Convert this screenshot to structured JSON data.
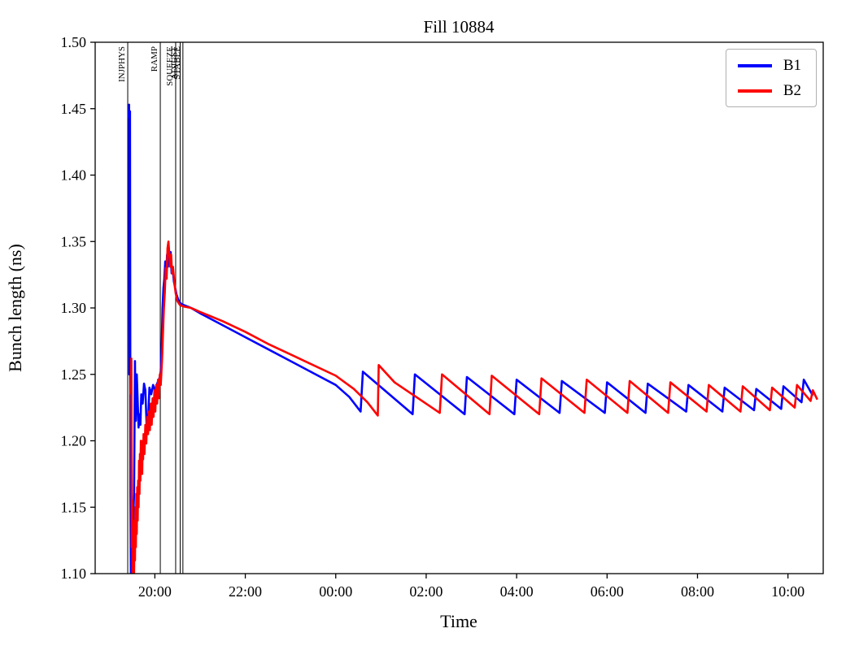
{
  "chart_data": {
    "type": "line",
    "title": "Fill 10884",
    "xlabel": "Time",
    "ylabel": "Bunch length (ns)",
    "x_unit": "hours_after_20:00",
    "xlim": [
      -1.32,
      14.78
    ],
    "ylim": [
      1.1,
      1.5
    ],
    "grid": false,
    "x_ticks": [
      {
        "t": 0,
        "label": "20:00"
      },
      {
        "t": 2,
        "label": "22:00"
      },
      {
        "t": 4,
        "label": "00:00"
      },
      {
        "t": 6,
        "label": "02:00"
      },
      {
        "t": 8,
        "label": "04:00"
      },
      {
        "t": 10,
        "label": "06:00"
      },
      {
        "t": 12,
        "label": "08:00"
      },
      {
        "t": 14,
        "label": "10:00"
      }
    ],
    "y_ticks": [
      1.1,
      1.15,
      1.2,
      1.25,
      1.3,
      1.35,
      1.4,
      1.45,
      1.5
    ],
    "beam_modes": [
      {
        "label": "INJPHYS",
        "t": -0.6
      },
      {
        "label": "RAMP",
        "t": 0.12
      },
      {
        "label": "SQUEEZE",
        "t": 0.46
      },
      {
        "label": "ADJUST",
        "t": 0.56
      },
      {
        "label": "STABLE",
        "t": 0.62
      }
    ],
    "legend": {
      "position": "upper right",
      "entries": [
        {
          "label": "B1",
          "color": "#0000ff"
        },
        {
          "label": "B2",
          "color": "#ff0000"
        }
      ]
    },
    "series": [
      {
        "name": "B1",
        "color": "#0000ff",
        "points": [
          [
            -0.58,
            1.443
          ],
          [
            -0.57,
            1.453
          ],
          [
            -0.565,
            1.25
          ],
          [
            -0.56,
            1.445
          ],
          [
            -0.555,
            1.33
          ],
          [
            -0.55,
            1.448
          ],
          [
            -0.54,
            1.16
          ],
          [
            -0.53,
            1.1
          ],
          [
            -0.52,
            1.145
          ],
          [
            -0.51,
            1.14
          ],
          [
            -0.5,
            1.11
          ],
          [
            -0.48,
            1.14
          ],
          [
            -0.46,
            1.16
          ],
          [
            -0.44,
            1.26
          ],
          [
            -0.43,
            1.22
          ],
          [
            -0.42,
            1.215
          ],
          [
            -0.4,
            1.25
          ],
          [
            -0.38,
            1.23
          ],
          [
            -0.36,
            1.21
          ],
          [
            -0.34,
            1.22
          ],
          [
            -0.32,
            1.212
          ],
          [
            -0.3,
            1.235
          ],
          [
            -0.27,
            1.228
          ],
          [
            -0.24,
            1.243
          ],
          [
            -0.21,
            1.238
          ],
          [
            -0.18,
            1.21
          ],
          [
            -0.15,
            1.214
          ],
          [
            -0.12,
            1.24
          ],
          [
            -0.08,
            1.235
          ],
          [
            -0.04,
            1.242
          ],
          [
            0.0,
            1.238
          ],
          [
            0.05,
            1.243
          ],
          [
            0.1,
            1.247
          ],
          [
            0.13,
            1.252
          ],
          [
            0.15,
            1.27
          ],
          [
            0.17,
            1.3
          ],
          [
            0.19,
            1.315
          ],
          [
            0.21,
            1.322
          ],
          [
            0.23,
            1.335
          ],
          [
            0.25,
            1.325
          ],
          [
            0.27,
            1.34
          ],
          [
            0.29,
            1.331
          ],
          [
            0.31,
            1.345
          ],
          [
            0.33,
            1.336
          ],
          [
            0.35,
            1.342
          ],
          [
            0.37,
            1.326
          ],
          [
            0.39,
            1.331
          ],
          [
            0.42,
            1.32
          ],
          [
            0.45,
            1.315
          ],
          [
            0.48,
            1.31
          ],
          [
            0.52,
            1.306
          ],
          [
            0.58,
            1.303
          ],
          [
            0.65,
            1.302
          ],
          [
            0.8,
            1.3
          ],
          [
            1.0,
            1.296
          ],
          [
            1.5,
            1.287
          ],
          [
            2.0,
            1.278
          ],
          [
            2.5,
            1.269
          ],
          [
            3.0,
            1.26
          ],
          [
            3.5,
            1.251
          ],
          [
            4.0,
            1.242
          ],
          [
            4.3,
            1.233
          ],
          [
            4.55,
            1.222
          ],
          [
            4.6,
            1.252
          ],
          [
            5.7,
            1.22
          ],
          [
            5.75,
            1.25
          ],
          [
            6.85,
            1.22
          ],
          [
            6.9,
            1.248
          ],
          [
            7.95,
            1.22
          ],
          [
            8.0,
            1.246
          ],
          [
            8.95,
            1.221
          ],
          [
            9.0,
            1.245
          ],
          [
            9.95,
            1.221
          ],
          [
            10.0,
            1.244
          ],
          [
            10.85,
            1.221
          ],
          [
            10.9,
            1.243
          ],
          [
            11.75,
            1.222
          ],
          [
            11.8,
            1.242
          ],
          [
            12.55,
            1.222
          ],
          [
            12.6,
            1.24
          ],
          [
            13.25,
            1.223
          ],
          [
            13.3,
            1.239
          ],
          [
            13.85,
            1.224
          ],
          [
            13.9,
            1.241
          ],
          [
            14.3,
            1.229
          ],
          [
            14.35,
            1.246
          ],
          [
            14.55,
            1.234
          ]
        ]
      },
      {
        "name": "B2",
        "color": "#ff0000",
        "points": [
          [
            -0.53,
            1.235
          ],
          [
            -0.52,
            1.262
          ],
          [
            -0.515,
            1.18
          ],
          [
            -0.51,
            1.12
          ],
          [
            -0.5,
            1.155
          ],
          [
            -0.495,
            1.1
          ],
          [
            -0.49,
            1.13
          ],
          [
            -0.48,
            1.095
          ],
          [
            -0.47,
            1.125
          ],
          [
            -0.46,
            1.1
          ],
          [
            -0.45,
            1.14
          ],
          [
            -0.44,
            1.11
          ],
          [
            -0.43,
            1.15
          ],
          [
            -0.42,
            1.12
          ],
          [
            -0.41,
            1.16
          ],
          [
            -0.4,
            1.13
          ],
          [
            -0.39,
            1.165
          ],
          [
            -0.38,
            1.14
          ],
          [
            -0.37,
            1.17
          ],
          [
            -0.36,
            1.15
          ],
          [
            -0.35,
            1.185
          ],
          [
            -0.34,
            1.16
          ],
          [
            -0.33,
            1.19
          ],
          [
            -0.32,
            1.17
          ],
          [
            -0.31,
            1.2
          ],
          [
            -0.3,
            1.18
          ],
          [
            -0.29,
            1.196
          ],
          [
            -0.28,
            1.175
          ],
          [
            -0.27,
            1.2
          ],
          [
            -0.26,
            1.186
          ],
          [
            -0.25,
            1.205
          ],
          [
            -0.23,
            1.19
          ],
          [
            -0.21,
            1.212
          ],
          [
            -0.19,
            1.198
          ],
          [
            -0.17,
            1.218
          ],
          [
            -0.15,
            1.205
          ],
          [
            -0.13,
            1.222
          ],
          [
            -0.11,
            1.208
          ],
          [
            -0.09,
            1.228
          ],
          [
            -0.07,
            1.212
          ],
          [
            -0.05,
            1.232
          ],
          [
            -0.03,
            1.218
          ],
          [
            -0.01,
            1.238
          ],
          [
            0.01,
            1.222
          ],
          [
            0.03,
            1.242
          ],
          [
            0.05,
            1.228
          ],
          [
            0.07,
            1.246
          ],
          [
            0.09,
            1.232
          ],
          [
            0.11,
            1.25
          ],
          [
            0.13,
            1.242
          ],
          [
            0.16,
            1.262
          ],
          [
            0.18,
            1.282
          ],
          [
            0.2,
            1.3
          ],
          [
            0.22,
            1.312
          ],
          [
            0.24,
            1.33
          ],
          [
            0.26,
            1.322
          ],
          [
            0.28,
            1.345
          ],
          [
            0.3,
            1.35
          ],
          [
            0.32,
            1.34
          ],
          [
            0.34,
            1.331
          ],
          [
            0.36,
            1.34
          ],
          [
            0.38,
            1.326
          ],
          [
            0.4,
            1.331
          ],
          [
            0.43,
            1.32
          ],
          [
            0.46,
            1.311
          ],
          [
            0.5,
            1.305
          ],
          [
            0.56,
            1.302
          ],
          [
            0.65,
            1.301
          ],
          [
            0.8,
            1.3
          ],
          [
            1.0,
            1.297
          ],
          [
            1.5,
            1.29
          ],
          [
            2.0,
            1.282
          ],
          [
            2.5,
            1.273
          ],
          [
            3.0,
            1.265
          ],
          [
            3.5,
            1.257
          ],
          [
            4.0,
            1.249
          ],
          [
            4.4,
            1.239
          ],
          [
            4.7,
            1.229
          ],
          [
            4.93,
            1.219
          ],
          [
            4.95,
            1.257
          ],
          [
            5.3,
            1.244
          ],
          [
            6.3,
            1.221
          ],
          [
            6.35,
            1.25
          ],
          [
            7.4,
            1.22
          ],
          [
            7.45,
            1.249
          ],
          [
            8.5,
            1.22
          ],
          [
            8.55,
            1.247
          ],
          [
            9.5,
            1.221
          ],
          [
            9.55,
            1.246
          ],
          [
            10.45,
            1.221
          ],
          [
            10.5,
            1.245
          ],
          [
            11.35,
            1.221
          ],
          [
            11.4,
            1.244
          ],
          [
            12.2,
            1.222
          ],
          [
            12.25,
            1.242
          ],
          [
            12.95,
            1.222
          ],
          [
            13.0,
            1.241
          ],
          [
            13.6,
            1.223
          ],
          [
            13.65,
            1.24
          ],
          [
            14.15,
            1.225
          ],
          [
            14.2,
            1.242
          ],
          [
            14.5,
            1.23
          ],
          [
            14.55,
            1.238
          ],
          [
            14.65,
            1.231
          ]
        ]
      }
    ]
  }
}
